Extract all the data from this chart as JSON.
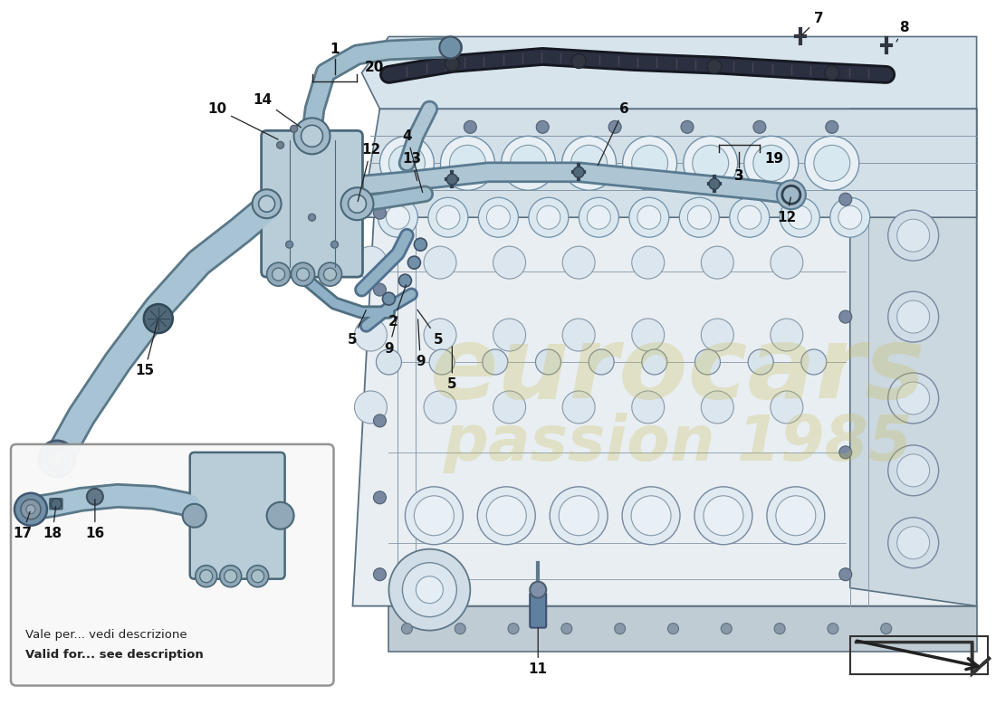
{
  "bg": "#ffffff",
  "hose_fill": "#aec6d4",
  "hose_edge": "#5a7a90",
  "pump_fill": "#b8cdd8",
  "pump_edge": "#4a6878",
  "engine_fill": "#e8eef2",
  "engine_edge": "#5a7080",
  "engine_inner": "#d0dce4",
  "label_color": "#111111",
  "arrow_color": "#222222",
  "wm1": "eurocars",
  "wm2": "passion 1985",
  "wm_color": "#c8b840",
  "inset_it": "Vale per... vedi descrizione",
  "inset_en": "Valid for... see description",
  "line_lw": 1.2
}
